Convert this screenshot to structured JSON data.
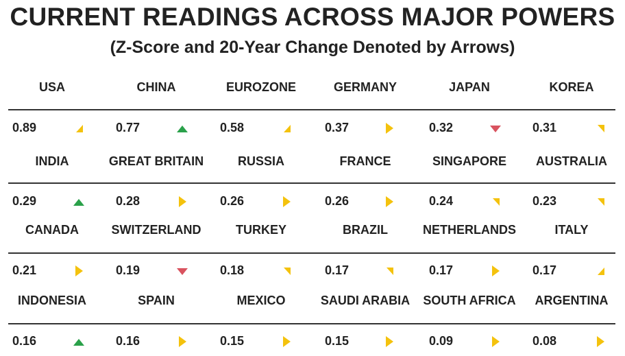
{
  "chart_data": {
    "type": "table",
    "title": "CURRENT READINGS ACROSS MAJOR POWERS",
    "subtitle": "(Z-Score and 20-Year Change Denoted by Arrows)",
    "arrow_colors": {
      "up": "#2aa14a",
      "down": "#d9535f",
      "right": "#f4c20d",
      "up-right": "#f4c20d",
      "down-right": "#f4c20d"
    },
    "rows": [
      [
        {
          "country": "USA",
          "z_score": "0.89",
          "arrow": "up-right"
        },
        {
          "country": "CHINA",
          "z_score": "0.77",
          "arrow": "up"
        },
        {
          "country": "EUROZONE",
          "z_score": "0.58",
          "arrow": "up-right"
        },
        {
          "country": "GERMANY",
          "z_score": "0.37",
          "arrow": "right"
        },
        {
          "country": "JAPAN",
          "z_score": "0.32",
          "arrow": "down"
        },
        {
          "country": "KOREA",
          "z_score": "0.31",
          "arrow": "down-right"
        }
      ],
      [
        {
          "country": "INDIA",
          "z_score": "0.29",
          "arrow": "up"
        },
        {
          "country": "GREAT BRITAIN",
          "z_score": "0.28",
          "arrow": "right"
        },
        {
          "country": "RUSSIA",
          "z_score": "0.26",
          "arrow": "right"
        },
        {
          "country": "FRANCE",
          "z_score": "0.26",
          "arrow": "right"
        },
        {
          "country": "SINGAPORE",
          "z_score": "0.24",
          "arrow": "down-right"
        },
        {
          "country": "AUSTRALIA",
          "z_score": "0.23",
          "arrow": "down-right"
        }
      ],
      [
        {
          "country": "CANADA",
          "z_score": "0.21",
          "arrow": "right"
        },
        {
          "country": "SWITZERLAND",
          "z_score": "0.19",
          "arrow": "down"
        },
        {
          "country": "TURKEY",
          "z_score": "0.18",
          "arrow": "down-right"
        },
        {
          "country": "BRAZIL",
          "z_score": "0.17",
          "arrow": "down-right"
        },
        {
          "country": "NETHERLANDS",
          "z_score": "0.17",
          "arrow": "right"
        },
        {
          "country": "ITALY",
          "z_score": "0.17",
          "arrow": "up-right"
        }
      ],
      [
        {
          "country": "INDONESIA",
          "z_score": "0.16",
          "arrow": "up"
        },
        {
          "country": "SPAIN",
          "z_score": "0.16",
          "arrow": "right"
        },
        {
          "country": "MEXICO",
          "z_score": "0.15",
          "arrow": "right"
        },
        {
          "country": "SAUDI ARABIA",
          "z_score": "0.15",
          "arrow": "right"
        },
        {
          "country": "SOUTH AFRICA",
          "z_score": "0.09",
          "arrow": "right"
        },
        {
          "country": "ARGENTINA",
          "z_score": "0.08",
          "arrow": "right"
        }
      ]
    ]
  }
}
